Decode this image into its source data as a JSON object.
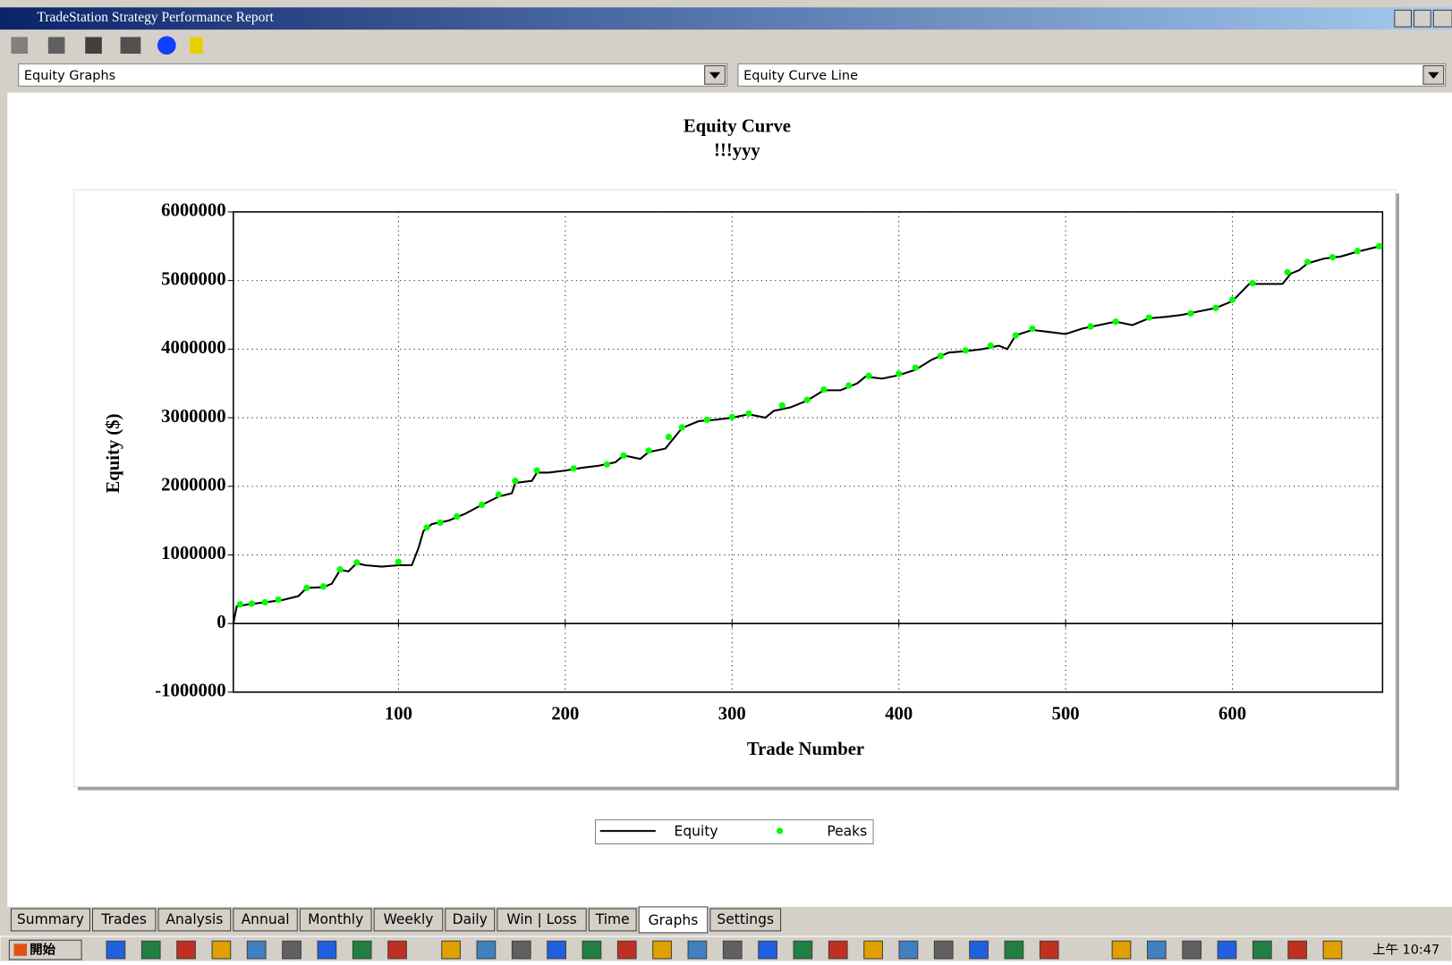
{
  "window": {
    "title": "TradeStation Strategy Performance Report",
    "report_select": "Equity Graphs",
    "graph_select": "Equity Curve Line",
    "tabs": [
      "Summary",
      "Trades",
      "Analysis",
      "Annual",
      "Monthly",
      "Weekly",
      "Daily",
      "Win | Loss",
      "Time",
      "Graphs",
      "Settings"
    ],
    "active_tab": "Graphs"
  },
  "taskbar": {
    "start": "開始",
    "clock": "上午 10:47"
  },
  "chart_data": {
    "type": "line",
    "title": "Equity Curve",
    "subtitle": "!!!yyy",
    "x_label": "Trade Number",
    "y_label": "Equity ($)",
    "xlim": [
      1,
      690
    ],
    "ylim": [
      -1000000,
      6000000
    ],
    "xticks": [
      100,
      200,
      300,
      400,
      500,
      600
    ],
    "yticks": [
      -1000000,
      0,
      1000000,
      2000000,
      3000000,
      4000000,
      5000000,
      6000000
    ],
    "grid": true,
    "series": [
      {
        "name": "Equity",
        "color": "#000000",
        "marker": "line",
        "x": [
          1,
          3,
          10,
          20,
          30,
          40,
          45,
          55,
          60,
          65,
          70,
          75,
          80,
          90,
          100,
          108,
          112,
          115,
          120,
          130,
          140,
          150,
          160,
          168,
          170,
          180,
          183,
          190,
          200,
          210,
          220,
          230,
          235,
          245,
          250,
          260,
          265,
          270,
          280,
          290,
          300,
          310,
          320,
          325,
          335,
          345,
          355,
          365,
          375,
          380,
          390,
          400,
          410,
          420,
          430,
          440,
          450,
          460,
          465,
          470,
          480,
          490,
          500,
          510,
          520,
          530,
          540,
          550,
          560,
          570,
          580,
          590,
          600,
          610,
          620,
          630,
          635,
          640,
          645,
          655,
          665,
          675,
          685,
          690
        ],
        "values": [
          0,
          250000,
          280000,
          310000,
          340000,
          400000,
          520000,
          530000,
          580000,
          780000,
          760000,
          880000,
          850000,
          830000,
          850000,
          850000,
          1100000,
          1350000,
          1450000,
          1500000,
          1600000,
          1730000,
          1850000,
          1900000,
          2050000,
          2080000,
          2200000,
          2200000,
          2230000,
          2270000,
          2300000,
          2350000,
          2450000,
          2400000,
          2500000,
          2550000,
          2700000,
          2850000,
          2950000,
          2970000,
          3000000,
          3050000,
          3000000,
          3100000,
          3150000,
          3250000,
          3400000,
          3400000,
          3500000,
          3600000,
          3570000,
          3620000,
          3700000,
          3850000,
          3950000,
          3970000,
          4000000,
          4050000,
          4000000,
          4200000,
          4280000,
          4250000,
          4220000,
          4300000,
          4350000,
          4400000,
          4350000,
          4450000,
          4470000,
          4500000,
          4550000,
          4600000,
          4700000,
          4950000,
          4950000,
          4950000,
          5100000,
          5150000,
          5250000,
          5320000,
          5350000,
          5420000,
          5480000,
          5500000
        ]
      },
      {
        "name": "Peaks",
        "color": "#00ff00",
        "marker": "dot",
        "x": [
          5,
          12,
          20,
          28,
          45,
          55,
          65,
          75,
          100,
          117,
          125,
          135,
          150,
          160,
          170,
          183,
          205,
          225,
          235,
          250,
          262,
          270,
          285,
          300,
          310,
          330,
          345,
          355,
          370,
          382,
          400,
          410,
          425,
          440,
          455,
          470,
          480,
          515,
          530,
          550,
          575,
          590,
          600,
          612,
          633,
          645,
          660,
          675,
          688
        ],
        "values": [
          280000,
          290000,
          310000,
          350000,
          520000,
          540000,
          790000,
          890000,
          900000,
          1400000,
          1470000,
          1560000,
          1730000,
          1880000,
          2080000,
          2230000,
          2260000,
          2320000,
          2450000,
          2520000,
          2720000,
          2860000,
          2970000,
          3010000,
          3060000,
          3180000,
          3260000,
          3410000,
          3470000,
          3610000,
          3640000,
          3730000,
          3900000,
          3980000,
          4050000,
          4200000,
          4300000,
          4330000,
          4400000,
          4460000,
          4520000,
          4600000,
          4720000,
          4960000,
          5120000,
          5270000,
          5340000,
          5430000,
          5500000
        ]
      }
    ],
    "legend": "bottom"
  }
}
